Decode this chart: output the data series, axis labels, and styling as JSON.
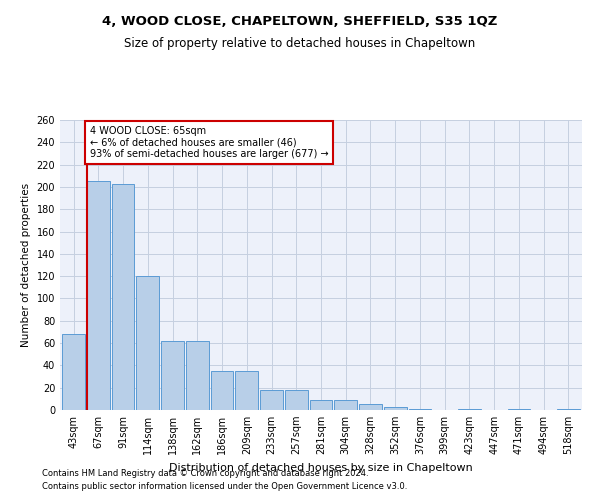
{
  "title": "4, WOOD CLOSE, CHAPELTOWN, SHEFFIELD, S35 1QZ",
  "subtitle": "Size of property relative to detached houses in Chapeltown",
  "xlabel": "Distribution of detached houses by size in Chapeltown",
  "ylabel": "Number of detached properties",
  "categories": [
    "43sqm",
    "67sqm",
    "91sqm",
    "114sqm",
    "138sqm",
    "162sqm",
    "186sqm",
    "209sqm",
    "233sqm",
    "257sqm",
    "281sqm",
    "304sqm",
    "328sqm",
    "352sqm",
    "376sqm",
    "399sqm",
    "423sqm",
    "447sqm",
    "471sqm",
    "494sqm",
    "518sqm"
  ],
  "values": [
    68,
    205,
    203,
    120,
    62,
    62,
    35,
    35,
    18,
    18,
    9,
    9,
    5,
    3,
    1,
    0,
    1,
    0,
    1,
    0,
    1
  ],
  "bar_color": "#b8cfe8",
  "bar_edge_color": "#5b9bd5",
  "marker_line_color": "#cc0000",
  "annotation_line1": "4 WOOD CLOSE: 65sqm",
  "annotation_line2": "← 6% of detached houses are smaller (46)",
  "annotation_line3": "93% of semi-detached houses are larger (677) →",
  "annotation_box_color": "#ffffff",
  "annotation_box_edge_color": "#cc0000",
  "ylim": [
    0,
    260
  ],
  "yticks": [
    0,
    20,
    40,
    60,
    80,
    100,
    120,
    140,
    160,
    180,
    200,
    220,
    240,
    260
  ],
  "footer_line1": "Contains HM Land Registry data © Crown copyright and database right 2024.",
  "footer_line2": "Contains public sector information licensed under the Open Government Licence v3.0.",
  "background_color": "#edf1fa",
  "grid_color": "#c5cfe0",
  "title_fontsize": 9.5,
  "subtitle_fontsize": 8.5,
  "xlabel_fontsize": 8,
  "ylabel_fontsize": 7.5,
  "tick_fontsize": 7,
  "annotation_fontsize": 7,
  "footer_fontsize": 6
}
